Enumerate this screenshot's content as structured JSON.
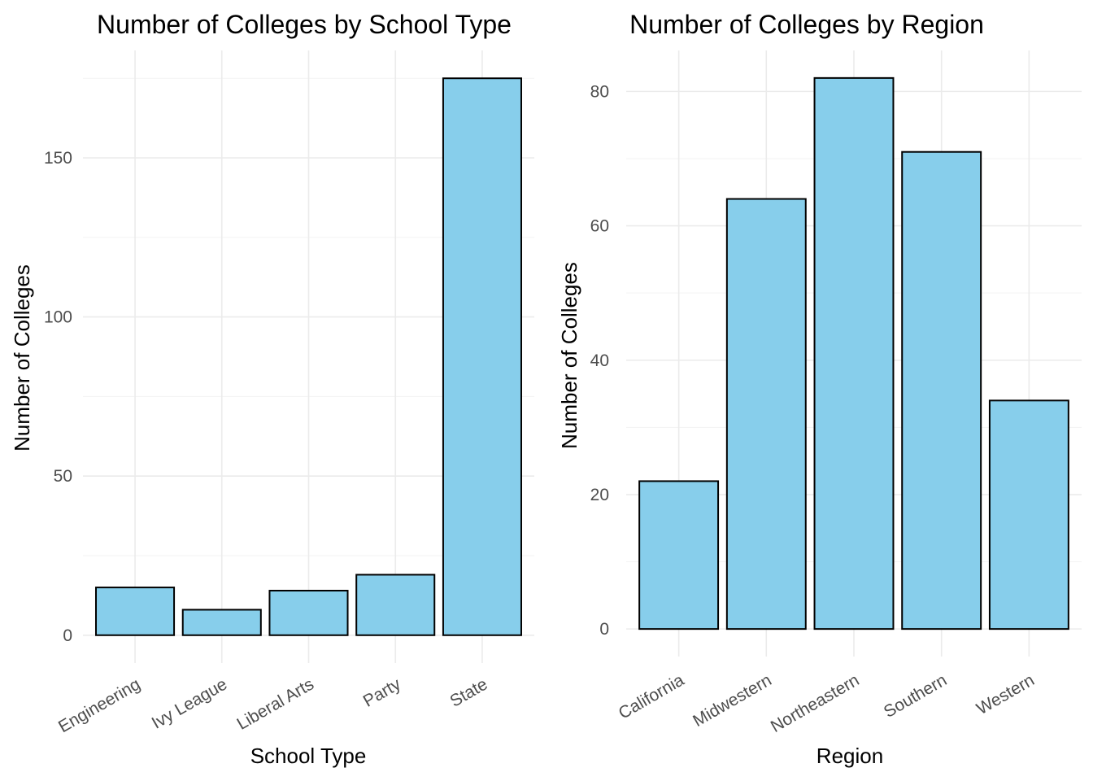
{
  "chart_data": [
    {
      "type": "bar",
      "title": "Number of Colleges by School Type",
      "xlabel": "School Type",
      "ylabel": "Number of Colleges",
      "categories": [
        "Engineering",
        "Ivy League",
        "Liberal Arts",
        "Party",
        "State"
      ],
      "values": [
        15,
        8,
        14,
        19,
        175
      ],
      "yticks": [
        0,
        50,
        100,
        150
      ],
      "yticks_minor": [
        25,
        75,
        125,
        175
      ],
      "ylim": [
        -8.75,
        183.75
      ],
      "bar_color": "#87ceeb",
      "grid": true
    },
    {
      "type": "bar",
      "title": "Number of Colleges by Region",
      "xlabel": "Region",
      "ylabel": "Number of Colleges",
      "categories": [
        "California",
        "Midwestern",
        "Northeastern",
        "Southern",
        "Western"
      ],
      "values": [
        22,
        64,
        82,
        71,
        34
      ],
      "yticks": [
        0,
        20,
        40,
        60,
        80
      ],
      "yticks_minor": [
        10,
        30,
        50,
        70
      ],
      "ylim": [
        -4.1,
        86.1
      ],
      "bar_color": "#87ceeb",
      "grid": true
    }
  ]
}
